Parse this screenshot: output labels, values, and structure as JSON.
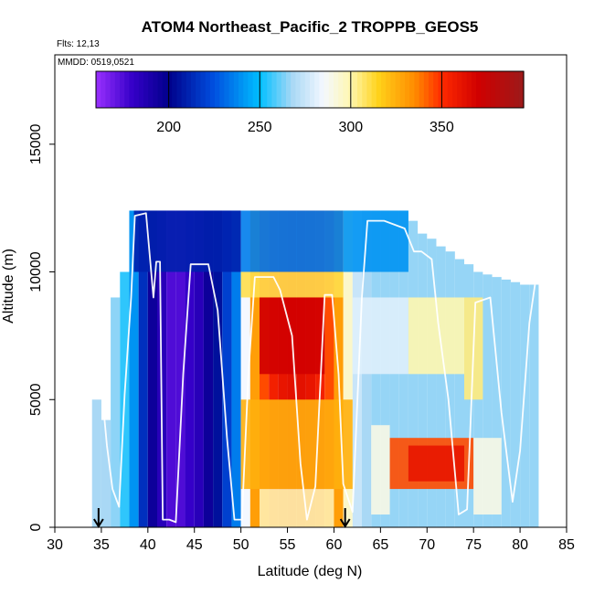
{
  "chart_data": {
    "type": "heatmap",
    "title": "ATOM4 Northeast_Pacific_2 TROPPB_GEOS5",
    "subtitle_flights": "Flts: 12,13",
    "subtitle_dates": "MMDD: 0519,0521",
    "xlabel": "Latitude (deg N)",
    "ylabel": "Altitude (m)",
    "xlim": [
      30,
      85
    ],
    "ylim": [
      0,
      18500
    ],
    "x_ticks": [
      30,
      35,
      40,
      45,
      50,
      55,
      60,
      65,
      70,
      75,
      80,
      85
    ],
    "y_ticks": [
      0,
      5000,
      10000,
      15000
    ],
    "colorbar": {
      "range": [
        160,
        395
      ],
      "ticks": [
        200,
        250,
        300,
        350
      ],
      "stops": [
        {
          "v": 160,
          "color": "#9b30ff"
        },
        {
          "v": 180,
          "color": "#3500c8"
        },
        {
          "v": 200,
          "color": "#00008b"
        },
        {
          "v": 225,
          "color": "#0050e0"
        },
        {
          "v": 250,
          "color": "#00bfff"
        },
        {
          "v": 268,
          "color": "#a9d8f5"
        },
        {
          "v": 285,
          "color": "#f4f8ff"
        },
        {
          "v": 300,
          "color": "#fff7b0"
        },
        {
          "v": 315,
          "color": "#ffd21a"
        },
        {
          "v": 335,
          "color": "#ff8c00"
        },
        {
          "v": 350,
          "color": "#ff2a00"
        },
        {
          "v": 370,
          "color": "#d00000"
        },
        {
          "v": 395,
          "color": "#9c1a1a"
        }
      ]
    },
    "columns": [
      {
        "lat": 34.5,
        "top": 5000,
        "value": 268
      },
      {
        "lat": 35.5,
        "top": 4200,
        "value": 268
      },
      {
        "lat": 36.5,
        "top": 9000,
        "value": 265
      },
      {
        "lat": 37.5,
        "top": 10000,
        "value": 255
      },
      {
        "lat": 38.5,
        "top": 12400,
        "value": 240
      },
      {
        "lat": 39.5,
        "top": 12400,
        "value": 215
      },
      {
        "lat": 40.5,
        "top": 12400,
        "value": 195
      },
      {
        "lat": 41.5,
        "top": 12400,
        "value": 185
      },
      {
        "lat": 42.5,
        "top": 12400,
        "value": 175
      },
      {
        "lat": 43.5,
        "top": 12400,
        "value": 175
      },
      {
        "lat": 44.5,
        "top": 12400,
        "value": 180
      },
      {
        "lat": 45.5,
        "top": 12400,
        "value": 185
      },
      {
        "lat": 46.5,
        "top": 12400,
        "value": 195
      },
      {
        "lat": 47.5,
        "top": 12400,
        "value": 205
      },
      {
        "lat": 48.5,
        "top": 12400,
        "value": 220
      },
      {
        "lat": 49.5,
        "top": 12400,
        "value": 235
      },
      {
        "lat": 50.5,
        "top": 12400,
        "value": 285
      },
      {
        "lat": 51.5,
        "top": 12400,
        "value": 330
      },
      {
        "lat": 52.5,
        "top": 12400,
        "value": 345
      },
      {
        "lat": 53.5,
        "top": 12400,
        "value": 355
      },
      {
        "lat": 54.5,
        "top": 12400,
        "value": 360
      },
      {
        "lat": 55.5,
        "top": 12400,
        "value": 362
      },
      {
        "lat": 56.5,
        "top": 12400,
        "value": 362
      },
      {
        "lat": 57.5,
        "top": 12400,
        "value": 360
      },
      {
        "lat": 58.5,
        "top": 12400,
        "value": 355
      },
      {
        "lat": 59.5,
        "top": 12400,
        "value": 345
      },
      {
        "lat": 60.5,
        "top": 12400,
        "value": 330
      },
      {
        "lat": 61.5,
        "top": 12400,
        "value": 295
      },
      {
        "lat": 62.5,
        "top": 12400,
        "value": 275
      },
      {
        "lat": 63.5,
        "top": 12400,
        "value": 268
      },
      {
        "lat": 64.5,
        "top": 12400,
        "value": 266
      },
      {
        "lat": 65.5,
        "top": 12400,
        "value": 266
      },
      {
        "lat": 66.5,
        "top": 12400,
        "value": 266
      },
      {
        "lat": 67.5,
        "top": 12400,
        "value": 266
      },
      {
        "lat": 68.5,
        "top": 12000,
        "value": 266
      },
      {
        "lat": 69.5,
        "top": 11500,
        "value": 266
      },
      {
        "lat": 70.5,
        "top": 11300,
        "value": 266
      },
      {
        "lat": 71.5,
        "top": 11000,
        "value": 266
      },
      {
        "lat": 72.5,
        "top": 10800,
        "value": 266
      },
      {
        "lat": 73.5,
        "top": 10500,
        "value": 266
      },
      {
        "lat": 74.5,
        "top": 10300,
        "value": 266
      },
      {
        "lat": 75.5,
        "top": 10000,
        "value": 266
      },
      {
        "lat": 76.5,
        "top": 9900,
        "value": 266
      },
      {
        "lat": 77.5,
        "top": 9800,
        "value": 266
      },
      {
        "lat": 78.5,
        "top": 9700,
        "value": 266
      },
      {
        "lat": 79.5,
        "top": 9600,
        "value": 266
      },
      {
        "lat": 80.5,
        "top": 9500,
        "value": 266
      },
      {
        "lat": 81.5,
        "top": 9500,
        "value": 266
      }
    ],
    "patches": [
      {
        "lat": [
          38.5,
          50.0
        ],
        "alt": [
          10000,
          12400
        ],
        "value": 210
      },
      {
        "lat": [
          50.0,
          61.0
        ],
        "alt": [
          10000,
          12400
        ],
        "value": 235
      },
      {
        "lat": [
          61.0,
          68.0
        ],
        "alt": [
          10000,
          12400
        ],
        "value": 240
      },
      {
        "lat": [
          50.0,
          61.0
        ],
        "alt": [
          9000,
          10000
        ],
        "value": 310
      },
      {
        "lat": [
          52.0,
          59.0
        ],
        "alt": [
          6000,
          9000
        ],
        "value": 370
      },
      {
        "lat": [
          50.0,
          62.0
        ],
        "alt": [
          1500,
          5000
        ],
        "value": 325
      },
      {
        "lat": [
          52.0,
          60.0
        ],
        "alt": [
          0,
          1500
        ],
        "value": 300
      },
      {
        "lat": [
          62.0,
          68.0
        ],
        "alt": [
          6000,
          9000
        ],
        "value": 280
      },
      {
        "lat": [
          68.0,
          74.0
        ],
        "alt": [
          6000,
          9000
        ],
        "value": 300
      },
      {
        "lat": [
          74.0,
          76.0
        ],
        "alt": [
          5000,
          9000
        ],
        "value": 305
      },
      {
        "lat": [
          66.0,
          75.0
        ],
        "alt": [
          1500,
          3500
        ],
        "value": 345
      },
      {
        "lat": [
          68.0,
          74.0
        ],
        "alt": [
          1800,
          3200
        ],
        "value": 360
      },
      {
        "lat": [
          64.0,
          66.0
        ],
        "alt": [
          500,
          4000
        ],
        "value": 290
      },
      {
        "lat": [
          75.0,
          78.0
        ],
        "alt": [
          500,
          3500
        ],
        "value": 290
      }
    ],
    "flight_track": [
      [
        35.2,
        4800
      ],
      [
        35.6,
        3200
      ],
      [
        36.2,
        1500
      ],
      [
        36.9,
        800
      ],
      [
        37.5,
        5200
      ],
      [
        38.2,
        9000
      ],
      [
        38.6,
        12200
      ],
      [
        39.8,
        12300
      ],
      [
        40.6,
        9000
      ],
      [
        40.9,
        10400
      ],
      [
        41.3,
        10400
      ],
      [
        41.6,
        300
      ],
      [
        42.3,
        300
      ],
      [
        43.0,
        200
      ],
      [
        43.8,
        6000
      ],
      [
        44.6,
        10300
      ],
      [
        46.5,
        10300
      ],
      [
        47.5,
        8500
      ],
      [
        48.5,
        3500
      ],
      [
        49.3,
        300
      ],
      [
        50.1,
        300
      ],
      [
        50.8,
        6000
      ],
      [
        51.5,
        9800
      ],
      [
        53.5,
        9800
      ],
      [
        54.2,
        9300
      ],
      [
        55.5,
        7500
      ],
      [
        56.4,
        2500
      ],
      [
        57.1,
        300
      ],
      [
        58.0,
        1600
      ],
      [
        59.0,
        9100
      ],
      [
        59.8,
        9100
      ],
      [
        60.5,
        6000
      ],
      [
        61.0,
        1700
      ],
      [
        62.0,
        600
      ],
      [
        63.0,
        9000
      ],
      [
        63.6,
        12000
      ],
      [
        65.4,
        12000
      ],
      [
        67.6,
        11700
      ],
      [
        68.6,
        10800
      ],
      [
        69.4,
        10800
      ],
      [
        70.5,
        10500
      ],
      [
        71.2,
        8000
      ],
      [
        72.3,
        5000
      ],
      [
        73.4,
        500
      ],
      [
        74.3,
        700
      ],
      [
        75.2,
        8800
      ],
      [
        76.8,
        9000
      ],
      [
        78.0,
        4500
      ],
      [
        79.2,
        1000
      ],
      [
        80.0,
        3000
      ],
      [
        81.0,
        8000
      ],
      [
        81.6,
        9500
      ]
    ],
    "arrows_lat": [
      34.7,
      61.2
    ]
  }
}
